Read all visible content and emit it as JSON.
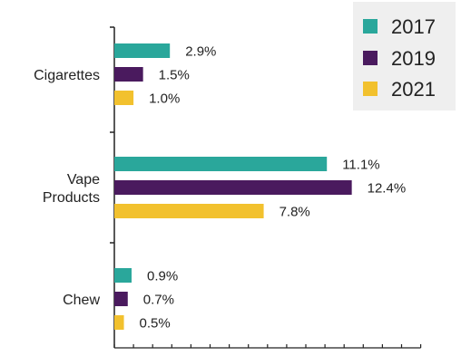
{
  "chart_data": {
    "type": "bar",
    "orientation": "horizontal",
    "categories": [
      "Cigarettes",
      "Vape\nProducts",
      "Chew"
    ],
    "series": [
      {
        "name": "2017",
        "color": "#2aa79b",
        "values": [
          2.9,
          11.1,
          0.9
        ],
        "labels": [
          "2.9%",
          "11.1%",
          "0.9%"
        ]
      },
      {
        "name": "2019",
        "color": "#4a1a5e",
        "values": [
          1.5,
          12.4,
          0.7
        ],
        "labels": [
          "1.5%",
          "12.4%",
          "0.7%"
        ]
      },
      {
        "name": "2021",
        "color": "#f2c12e",
        "values": [
          1.0,
          7.8,
          0.5
        ],
        "labels": [
          "1.0%",
          "7.8%",
          "0.5%"
        ]
      }
    ],
    "xlim": [
      0,
      16
    ],
    "grid": false,
    "legend_position": "top-right",
    "legend_background": "#efefef",
    "axis_color": "#222222",
    "text_color": "#222222"
  }
}
